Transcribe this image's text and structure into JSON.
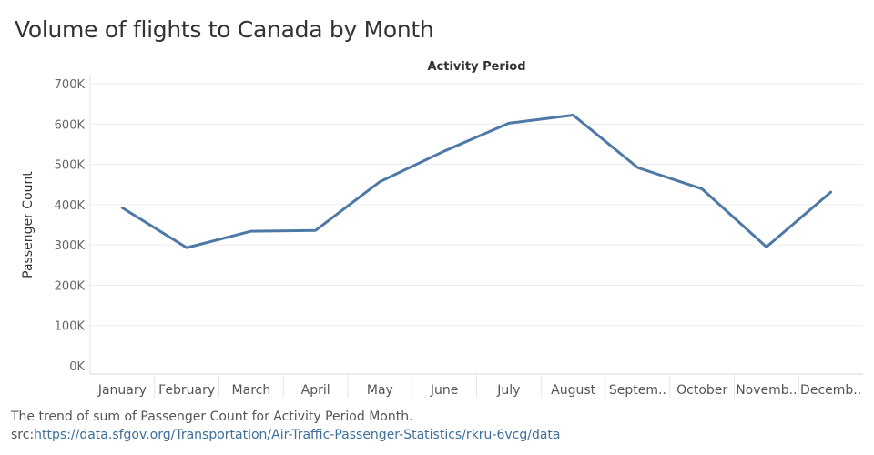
{
  "page": {
    "title": "Volume of flights to Canada by Month",
    "caption_line1": "The trend of sum of Passenger Count for Activity Period Month.",
    "source_prefix": "src:",
    "source_link": "https://data.sfgov.org/Transportation/Air-Traffic-Passenger-Statistics/rkru-6vcg/data"
  },
  "chart_data": {
    "type": "line",
    "title": "Volume of flights to Canada by Month",
    "xlabel": "Activity Period",
    "ylabel": "Passenger Count",
    "categories": [
      "January",
      "February",
      "March",
      "April",
      "May",
      "June",
      "July",
      "August",
      "Septem..",
      "October",
      "Novemb..",
      "Decemb.."
    ],
    "values": [
      392000,
      293000,
      334000,
      336000,
      457000,
      533000,
      602000,
      622000,
      492000,
      439000,
      295000,
      431000
    ],
    "ylim": [
      0,
      700000
    ],
    "yticks": [
      0,
      100000,
      200000,
      300000,
      400000,
      500000,
      600000,
      700000
    ],
    "ytick_labels": [
      "0K",
      "100K",
      "200K",
      "300K",
      "400K",
      "500K",
      "600K",
      "700K"
    ],
    "grid": true,
    "line_color": "#4e79a7"
  }
}
